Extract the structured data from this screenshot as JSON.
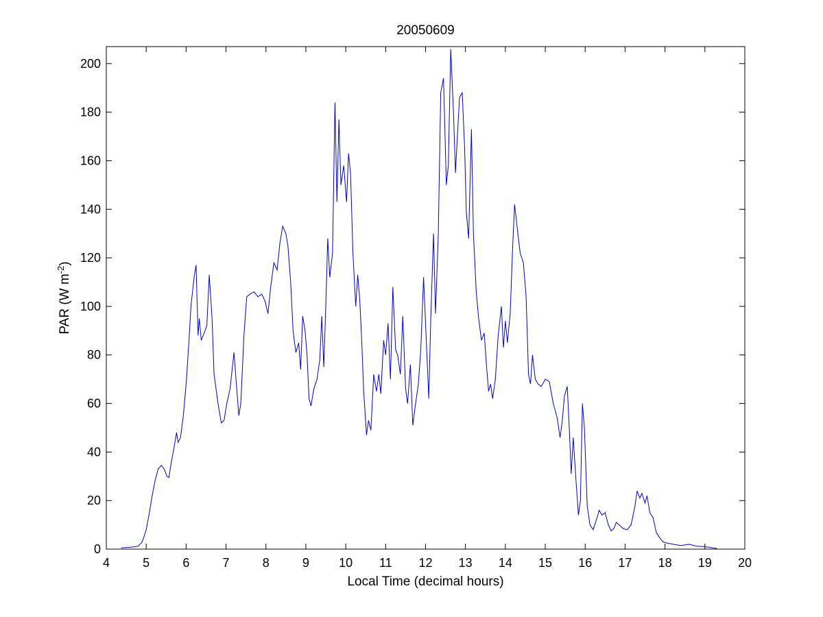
{
  "chart_data": {
    "type": "line",
    "title": "20050609",
    "xlabel": "Local Time (decimal hours)",
    "ylabel": {
      "base": "PAR (W m",
      "exponent": "-2",
      "close": ")"
    },
    "xlim": [
      4,
      20
    ],
    "ylim": [
      0,
      207
    ],
    "xticks": [
      4,
      5,
      6,
      7,
      8,
      9,
      10,
      11,
      12,
      13,
      14,
      15,
      16,
      17,
      18,
      19,
      20
    ],
    "yticks": [
      0,
      20,
      40,
      60,
      80,
      100,
      120,
      140,
      160,
      180,
      200
    ],
    "grid": false,
    "legend": "none",
    "series": [
      {
        "color": "#0000cc",
        "points": [
          [
            4.37,
            0.5
          ],
          [
            4.6,
            0.8
          ],
          [
            4.8,
            1.2
          ],
          [
            4.9,
            3
          ],
          [
            5.0,
            8
          ],
          [
            5.08,
            15
          ],
          [
            5.15,
            22
          ],
          [
            5.22,
            28
          ],
          [
            5.3,
            33
          ],
          [
            5.38,
            34.5
          ],
          [
            5.45,
            33
          ],
          [
            5.52,
            30
          ],
          [
            5.57,
            29.5
          ],
          [
            5.63,
            36
          ],
          [
            5.7,
            42
          ],
          [
            5.76,
            48
          ],
          [
            5.8,
            44
          ],
          [
            5.86,
            46
          ],
          [
            5.93,
            55
          ],
          [
            6.0,
            68
          ],
          [
            6.07,
            85
          ],
          [
            6.12,
            100
          ],
          [
            6.2,
            112
          ],
          [
            6.25,
            117
          ],
          [
            6.3,
            88
          ],
          [
            6.33,
            95
          ],
          [
            6.38,
            86
          ],
          [
            6.45,
            89
          ],
          [
            6.52,
            92
          ],
          [
            6.58,
            113
          ],
          [
            6.65,
            95
          ],
          [
            6.7,
            72
          ],
          [
            6.8,
            60
          ],
          [
            6.88,
            52
          ],
          [
            6.95,
            53
          ],
          [
            7.02,
            60
          ],
          [
            7.1,
            66
          ],
          [
            7.2,
            81
          ],
          [
            7.25,
            70
          ],
          [
            7.32,
            55
          ],
          [
            7.37,
            60
          ],
          [
            7.45,
            88
          ],
          [
            7.52,
            104
          ],
          [
            7.6,
            105
          ],
          [
            7.7,
            106
          ],
          [
            7.8,
            104
          ],
          [
            7.9,
            105
          ],
          [
            7.98,
            102
          ],
          [
            8.05,
            97
          ],
          [
            8.12,
            108
          ],
          [
            8.2,
            118
          ],
          [
            8.28,
            115
          ],
          [
            8.35,
            126
          ],
          [
            8.42,
            133
          ],
          [
            8.5,
            130
          ],
          [
            8.55,
            125
          ],
          [
            8.62,
            110
          ],
          [
            8.68,
            90
          ],
          [
            8.75,
            81
          ],
          [
            8.82,
            85
          ],
          [
            8.87,
            74
          ],
          [
            8.92,
            96
          ],
          [
            8.98,
            90
          ],
          [
            9.03,
            80
          ],
          [
            9.08,
            62
          ],
          [
            9.13,
            59
          ],
          [
            9.2,
            66
          ],
          [
            9.28,
            70
          ],
          [
            9.35,
            78
          ],
          [
            9.4,
            96
          ],
          [
            9.45,
            75
          ],
          [
            9.5,
            100
          ],
          [
            9.55,
            128
          ],
          [
            9.6,
            112
          ],
          [
            9.67,
            122
          ],
          [
            9.73,
            184
          ],
          [
            9.78,
            143
          ],
          [
            9.83,
            177
          ],
          [
            9.88,
            150
          ],
          [
            9.95,
            158
          ],
          [
            10.02,
            143
          ],
          [
            10.07,
            163
          ],
          [
            10.12,
            155
          ],
          [
            10.18,
            122
          ],
          [
            10.25,
            100
          ],
          [
            10.3,
            113
          ],
          [
            10.35,
            103
          ],
          [
            10.4,
            86
          ],
          [
            10.45,
            65
          ],
          [
            10.52,
            47
          ],
          [
            10.57,
            53
          ],
          [
            10.63,
            49
          ],
          [
            10.7,
            72
          ],
          [
            10.77,
            65
          ],
          [
            10.83,
            72
          ],
          [
            10.88,
            64
          ],
          [
            10.95,
            86
          ],
          [
            11.0,
            80
          ],
          [
            11.06,
            93
          ],
          [
            11.12,
            70
          ],
          [
            11.18,
            108
          ],
          [
            11.25,
            82
          ],
          [
            11.3,
            80
          ],
          [
            11.37,
            72
          ],
          [
            11.43,
            96
          ],
          [
            11.5,
            66
          ],
          [
            11.55,
            60
          ],
          [
            11.62,
            76
          ],
          [
            11.68,
            51
          ],
          [
            11.75,
            60
          ],
          [
            11.82,
            68
          ],
          [
            11.88,
            82
          ],
          [
            11.95,
            112
          ],
          [
            12.02,
            85
          ],
          [
            12.08,
            62
          ],
          [
            12.13,
            95
          ],
          [
            12.2,
            130
          ],
          [
            12.25,
            97
          ],
          [
            12.32,
            130
          ],
          [
            12.38,
            188
          ],
          [
            12.45,
            194
          ],
          [
            12.52,
            150
          ],
          [
            12.57,
            158
          ],
          [
            12.63,
            206
          ],
          [
            12.7,
            180
          ],
          [
            12.75,
            155
          ],
          [
            12.8,
            171
          ],
          [
            12.85,
            186
          ],
          [
            12.92,
            188
          ],
          [
            12.98,
            165
          ],
          [
            13.02,
            139
          ],
          [
            13.08,
            128
          ],
          [
            13.15,
            173
          ],
          [
            13.2,
            130
          ],
          [
            13.27,
            106
          ],
          [
            13.33,
            95
          ],
          [
            13.4,
            86
          ],
          [
            13.47,
            89
          ],
          [
            13.53,
            75
          ],
          [
            13.58,
            65
          ],
          [
            13.63,
            68
          ],
          [
            13.68,
            62
          ],
          [
            13.75,
            70
          ],
          [
            13.82,
            88
          ],
          [
            13.9,
            100
          ],
          [
            13.95,
            83
          ],
          [
            14.0,
            94
          ],
          [
            14.05,
            85
          ],
          [
            14.12,
            97
          ],
          [
            14.18,
            123
          ],
          [
            14.23,
            142
          ],
          [
            14.3,
            132
          ],
          [
            14.37,
            122
          ],
          [
            14.45,
            118
          ],
          [
            14.52,
            104
          ],
          [
            14.58,
            72
          ],
          [
            14.63,
            68
          ],
          [
            14.68,
            80
          ],
          [
            14.75,
            70
          ],
          [
            14.82,
            68
          ],
          [
            14.9,
            67
          ],
          [
            15.0,
            70
          ],
          [
            15.1,
            69
          ],
          [
            15.2,
            60
          ],
          [
            15.3,
            54
          ],
          [
            15.37,
            46
          ],
          [
            15.42,
            52
          ],
          [
            15.48,
            63
          ],
          [
            15.55,
            67
          ],
          [
            15.6,
            50
          ],
          [
            15.65,
            31
          ],
          [
            15.7,
            46
          ],
          [
            15.77,
            28
          ],
          [
            15.83,
            14
          ],
          [
            15.88,
            20
          ],
          [
            15.93,
            60
          ],
          [
            15.98,
            50
          ],
          [
            16.05,
            18
          ],
          [
            16.12,
            10
          ],
          [
            16.2,
            8
          ],
          [
            16.28,
            12
          ],
          [
            16.35,
            16
          ],
          [
            16.42,
            14
          ],
          [
            16.5,
            15
          ],
          [
            16.58,
            10
          ],
          [
            16.65,
            7.5
          ],
          [
            16.72,
            8.5
          ],
          [
            16.78,
            11
          ],
          [
            16.85,
            10
          ],
          [
            16.95,
            8.5
          ],
          [
            17.05,
            8
          ],
          [
            17.15,
            10
          ],
          [
            17.25,
            18
          ],
          [
            17.3,
            24
          ],
          [
            17.37,
            21
          ],
          [
            17.42,
            23
          ],
          [
            17.5,
            19
          ],
          [
            17.55,
            22
          ],
          [
            17.62,
            15
          ],
          [
            17.7,
            13
          ],
          [
            17.78,
            7
          ],
          [
            17.85,
            5
          ],
          [
            17.95,
            3
          ],
          [
            18.05,
            2.5
          ],
          [
            18.2,
            2
          ],
          [
            18.4,
            1.5
          ],
          [
            18.6,
            2
          ],
          [
            18.8,
            1.2
          ],
          [
            19.0,
            1
          ],
          [
            19.2,
            0.5
          ],
          [
            19.3,
            0.3
          ]
        ]
      }
    ]
  }
}
